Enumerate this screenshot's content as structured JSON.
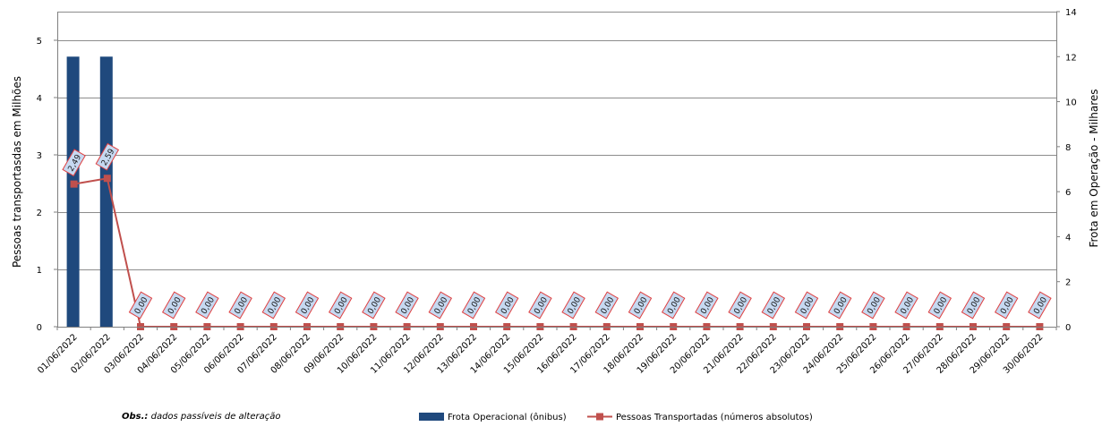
{
  "chart_data": {
    "type": "bar",
    "categories": [
      "01/06/2022",
      "02/06/2022",
      "03/06/2022",
      "04/06/2022",
      "05/06/2022",
      "06/06/2022",
      "07/06/2022",
      "08/06/2022",
      "09/06/2022",
      "10/06/2022",
      "11/06/2022",
      "12/06/2022",
      "13/06/2022",
      "14/06/2022",
      "15/06/2022",
      "16/06/2022",
      "17/06/2022",
      "18/06/2022",
      "19/06/2022",
      "20/06/2022",
      "21/06/2022",
      "22/06/2022",
      "23/06/2022",
      "24/06/2022",
      "25/06/2022",
      "26/06/2022",
      "27/06/2022",
      "28/06/2022",
      "29/06/2022",
      "30/06/2022"
    ],
    "series": [
      {
        "name": "Frota Operacional (ônibus)",
        "type": "bar",
        "axis": "right",
        "color": "#1f497d",
        "values": [
          12.0,
          12.0,
          0,
          0,
          0,
          0,
          0,
          0,
          0,
          0,
          0,
          0,
          0,
          0,
          0,
          0,
          0,
          0,
          0,
          0,
          0,
          0,
          0,
          0,
          0,
          0,
          0,
          0,
          0,
          0
        ]
      },
      {
        "name": "Pessoas Transportadas (números absolutos)",
        "type": "line",
        "axis": "left",
        "color": "#c0504d",
        "values": [
          2.49,
          2.59,
          0,
          0,
          0,
          0,
          0,
          0,
          0,
          0,
          0,
          0,
          0,
          0,
          0,
          0,
          0,
          0,
          0,
          0,
          0,
          0,
          0,
          0,
          0,
          0,
          0,
          0,
          0,
          0
        ],
        "labels": [
          "2,49",
          "2,59",
          "0,00",
          "0,00",
          "0,00",
          "0,00",
          "0,00",
          "0,00",
          "0,00",
          "0,00",
          "0,00",
          "0,00",
          "0,00",
          "0,00",
          "0,00",
          "0,00",
          "0,00",
          "0,00",
          "0,00",
          "0,00",
          "0,00",
          "0,00",
          "0,00",
          "0,00",
          "0,00",
          "0,00",
          "0,00",
          "0,00",
          "0,00",
          "0,00"
        ]
      }
    ],
    "ylabel": "Pessoas transportasdas  em Milhões",
    "ylim": [
      0,
      5.5
    ],
    "yticks": [
      0,
      1,
      2,
      3,
      4,
      5
    ],
    "y2label": "Frota  em Operação - Milhares",
    "y2lim": [
      0,
      14
    ],
    "y2ticks": [
      0,
      2,
      4,
      6,
      8,
      10,
      12,
      14
    ],
    "grid": true,
    "legend_position": "bottom"
  },
  "footnote": {
    "bold": "Obs.:",
    "text": " dados passíveis  de  alteração"
  }
}
